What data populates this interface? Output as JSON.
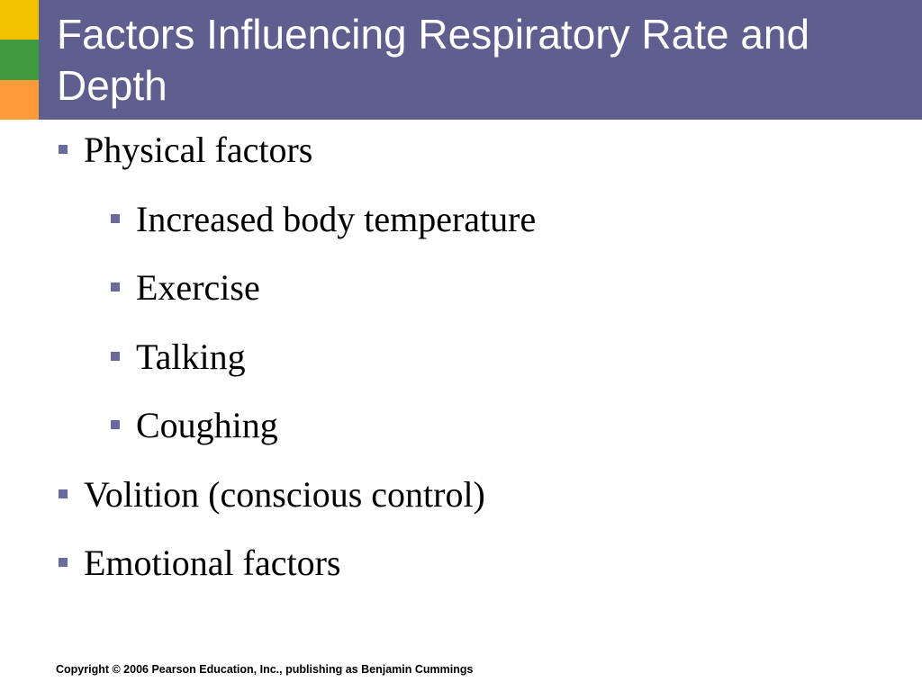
{
  "theme": {
    "title_bar_color": "#5f5f8f",
    "accent_colors": [
      "#f2c200",
      "#3f9a3f",
      "#ff9a3a"
    ],
    "bullet_color": "#6a6aa0"
  },
  "slide": {
    "title": "Factors Influencing Respiratory Rate and Depth",
    "bullets": [
      {
        "text": "Physical factors",
        "level": 1
      },
      {
        "text": "Increased body temperature",
        "level": 2
      },
      {
        "text": "Exercise",
        "level": 2
      },
      {
        "text": "Talking",
        "level": 2
      },
      {
        "text": "Coughing",
        "level": 2
      },
      {
        "text": "Volition (conscious control)",
        "level": 1
      },
      {
        "text": "Emotional factors",
        "level": 1
      }
    ]
  },
  "footer": {
    "copyright": "Copyright © 2006 Pearson Education, Inc., publishing as Benjamin Cummings"
  }
}
